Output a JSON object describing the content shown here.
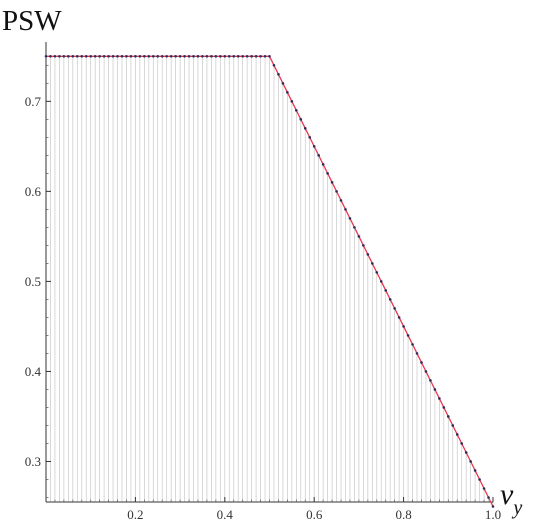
{
  "chart_data": {
    "type": "line",
    "ylabel": "PSW",
    "xlabel_main": "ν",
    "xlabel_sub": "y",
    "xlim": [
      0.0,
      1.0
    ],
    "ylim": [
      0.255,
      0.757
    ],
    "x_ticks": [
      0.2,
      0.4,
      0.6,
      0.8,
      1.0
    ],
    "x_tick_labels": [
      "0.2",
      "0.4",
      "0.6",
      "0.8",
      "1.0"
    ],
    "y_ticks": [
      0.3,
      0.4,
      0.5,
      0.6,
      0.7
    ],
    "y_tick_labels": [
      "0.3",
      "0.4",
      "0.5",
      "0.6",
      "0.7"
    ],
    "grid": "vertical lines at each sample",
    "line_color": "#e8384f",
    "point_color": "#2d2d5a",
    "grid_color": "#c8c8c8",
    "fit_line": {
      "x": [
        0.0,
        0.5,
        1.0
      ],
      "y": [
        0.75,
        0.75,
        0.25
      ]
    },
    "samples": {
      "x_start": 0.0,
      "x_end": 1.0,
      "count": 101,
      "plateau_value": 0.75,
      "plateau_until": 0.5,
      "end_value": 0.25
    }
  }
}
